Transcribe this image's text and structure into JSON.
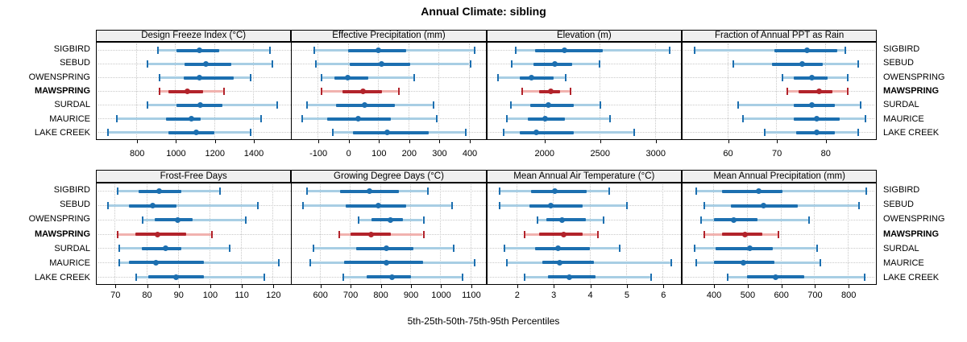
{
  "title": "Annual Climate: sibling",
  "caption": "5th-25th-50th-75th-95th Percentiles",
  "sites": [
    "SIGBIRD",
    "SEBUD",
    "OWENSPRING",
    "MAWSPRING",
    "SURDAL",
    "MAURICE",
    "LAKE CREEK"
  ],
  "highlighted_site": "MAWSPRING",
  "colors": {
    "series_dark": "#1c6fb0",
    "series_light": "#a8cee4",
    "highlight_dark": "#b2232b",
    "highlight_light": "#f1b2af",
    "grid": "#c9c9c9",
    "header_bg": "#f0f0f0",
    "border": "#000000"
  },
  "chart_data": {
    "type": "dotplot",
    "note": "values per site are [5th, 25th, 50th, 75th, 95th] percentiles",
    "percentile_levels": [
      5,
      25,
      50,
      75,
      95
    ],
    "panels": [
      {
        "title": "Design Freeze Index (°C)",
        "xlim": [
          588,
          1592
        ],
        "ticks": [
          800,
          1000,
          1200,
          1400
        ],
        "values": [
          [
            905,
            1005,
            1115,
            1225,
            1480
          ],
          [
            850,
            1045,
            1150,
            1285,
            1495
          ],
          [
            915,
            1040,
            1115,
            1300,
            1380
          ],
          [
            915,
            965,
            1055,
            1140,
            1245
          ],
          [
            850,
            1005,
            1120,
            1240,
            1520
          ],
          [
            695,
            950,
            1075,
            1130,
            1435
          ],
          [
            650,
            965,
            1100,
            1200,
            1380
          ]
        ]
      },
      {
        "title": "Effective Precipitation (mm)",
        "xlim": [
          -190,
          455
        ],
        "ticks": [
          -100,
          0,
          100,
          200,
          300,
          400
        ],
        "values": [
          [
            -115,
            0,
            95,
            190,
            415
          ],
          [
            -110,
            5,
            105,
            205,
            400
          ],
          [
            -90,
            -45,
            -5,
            65,
            215
          ],
          [
            -90,
            -20,
            45,
            110,
            165
          ],
          [
            -140,
            -40,
            50,
            155,
            280
          ],
          [
            -155,
            -70,
            30,
            140,
            290
          ],
          [
            -55,
            15,
            125,
            265,
            385
          ]
        ]
      },
      {
        "title": "Elevation (m)",
        "xlim": [
          1478,
          3234
        ],
        "ticks": [
          2000,
          2500,
          3000
        ],
        "values": [
          [
            1735,
            1920,
            2175,
            2525,
            3125
          ],
          [
            1700,
            1905,
            2085,
            2255,
            2490
          ],
          [
            1580,
            1780,
            1875,
            2085,
            2190
          ],
          [
            1795,
            1955,
            2050,
            2140,
            2230
          ],
          [
            1695,
            1875,
            2030,
            2265,
            2495
          ],
          [
            1655,
            1855,
            2000,
            2190,
            2585
          ],
          [
            1630,
            1780,
            1920,
            2270,
            2805
          ]
        ]
      },
      {
        "title": "Fraction of Annual PPT as Rain",
        "xlim": [
          50.5,
          90.5
        ],
        "ticks": [
          60,
          70,
          80
        ],
        "values": [
          [
            53,
            69.5,
            76,
            82.5,
            84
          ],
          [
            61,
            69,
            75,
            79.5,
            86.5
          ],
          [
            71,
            73.5,
            77,
            80.5,
            84.5
          ],
          [
            72,
            74.5,
            78.5,
            81.5,
            84.5
          ],
          [
            62,
            73.5,
            77,
            82,
            87
          ],
          [
            63,
            73.5,
            78,
            83,
            88
          ],
          [
            67.5,
            74,
            78,
            82,
            86.5
          ]
        ]
      },
      {
        "title": "Frost-Free Days",
        "xlim": [
          63.8,
          125.6
        ],
        "ticks": [
          70,
          80,
          90,
          100,
          110,
          120
        ],
        "values": [
          [
            70.5,
            77.5,
            83.5,
            91,
            103
          ],
          [
            67.5,
            74.5,
            81.5,
            89.5,
            115
          ],
          [
            78.5,
            82.5,
            89.5,
            94.5,
            111
          ],
          [
            70.5,
            76.5,
            83,
            92.5,
            100.5
          ],
          [
            71,
            78.5,
            85.5,
            91,
            106
          ],
          [
            71,
            74.5,
            82.5,
            98,
            121.5
          ],
          [
            76.5,
            80.5,
            89,
            98,
            117
          ]
        ]
      },
      {
        "title": "Growing Degree Days (°C)",
        "xlim": [
          503,
          1150
        ],
        "ticks": [
          600,
          700,
          800,
          900,
          1000,
          1100
        ],
        "values": [
          [
            555,
            665,
            760,
            860,
            955
          ],
          [
            540,
            685,
            790,
            885,
            1035
          ],
          [
            725,
            770,
            830,
            875,
            940
          ],
          [
            660,
            700,
            765,
            835,
            940
          ],
          [
            575,
            720,
            815,
            910,
            1040
          ],
          [
            565,
            680,
            815,
            940,
            1110
          ],
          [
            675,
            755,
            835,
            900,
            1070
          ]
        ]
      },
      {
        "title": "Mean Annual Air Temperature (°C)",
        "xlim": [
          1.16,
          6.5
        ],
        "ticks": [
          2,
          3,
          4,
          5,
          6
        ],
        "values": [
          [
            1.5,
            2.4,
            3.0,
            3.9,
            4.5
          ],
          [
            1.5,
            2.35,
            2.9,
            3.8,
            5.0
          ],
          [
            2.55,
            2.8,
            3.2,
            3.9,
            4.35
          ],
          [
            2.2,
            2.6,
            3.25,
            3.8,
            4.2
          ],
          [
            1.65,
            2.5,
            3.1,
            4.0,
            4.8
          ],
          [
            1.7,
            2.7,
            3.15,
            4.1,
            6.2
          ],
          [
            2.2,
            2.85,
            3.4,
            4.15,
            5.65
          ]
        ]
      },
      {
        "title": "Mean Annual Precipitation (mm)",
        "xlim": [
          304,
          884
        ],
        "ticks": [
          400,
          500,
          600,
          700,
          800
        ],
        "values": [
          [
            345,
            425,
            530,
            605,
            850
          ],
          [
            370,
            450,
            545,
            650,
            830
          ],
          [
            360,
            400,
            455,
            530,
            680
          ],
          [
            370,
            425,
            490,
            545,
            590
          ],
          [
            340,
            405,
            505,
            575,
            705
          ],
          [
            345,
            400,
            485,
            580,
            715
          ],
          [
            440,
            500,
            580,
            670,
            845
          ]
        ]
      }
    ]
  }
}
